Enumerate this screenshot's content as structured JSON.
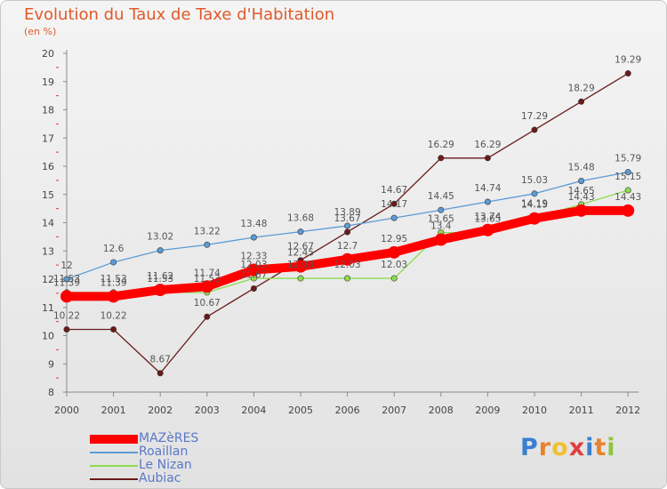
{
  "title": "Evolution du Taux de Taxe d'Habitation",
  "subtitle": "(en %)",
  "logo": "Proxiti",
  "chart_data": {
    "type": "line",
    "x": [
      "2000",
      "2001",
      "2002",
      "2003",
      "2004",
      "2005",
      "2006",
      "2007",
      "2008",
      "2009",
      "2010",
      "2011",
      "2012"
    ],
    "ylim": [
      8,
      20
    ],
    "yticks": [
      8,
      9,
      10,
      11,
      12,
      13,
      14,
      15,
      16,
      17,
      18,
      19,
      20
    ],
    "grid": false,
    "legend_position": "bottom-left",
    "series": [
      {
        "name": "MAZèRES",
        "color": "#ff0000",
        "values": [
          11.39,
          11.39,
          11.62,
          11.74,
          12.33,
          12.45,
          12.7,
          12.95,
          13.4,
          13.74,
          14.15,
          14.43,
          14.43
        ]
      },
      {
        "name": "Roaillan",
        "color": "#5b9bd5",
        "values": [
          12,
          12.6,
          13.02,
          13.22,
          13.48,
          13.68,
          13.89,
          14.17,
          14.45,
          14.74,
          15.03,
          15.48,
          15.79
        ]
      },
      {
        "name": "Le Nizan",
        "color": "#8cdc50",
        "values": [
          11.53,
          11.53,
          11.53,
          11.53,
          12.03,
          12.03,
          12.03,
          12.03,
          13.65,
          13.65,
          14.19,
          14.65,
          15.15
        ]
      },
      {
        "name": "Aubiac",
        "color": "#6b1a1a",
        "values": [
          10.22,
          10.22,
          8.67,
          10.67,
          11.67,
          12.67,
          13.67,
          14.67,
          16.29,
          16.29,
          17.29,
          18.29,
          19.29
        ]
      }
    ],
    "data_labels": [
      [
        "11.39",
        "11.39",
        "11.62",
        "11.74",
        "12.33",
        "12.45",
        "12.7",
        "12.95",
        "13.4",
        "13.74",
        "14.15",
        "14.43",
        "14.43"
      ],
      [
        "12",
        "12.6",
        "13.02",
        "13.22",
        "13.48",
        "13.68",
        "13.89",
        "14.17",
        "14.45",
        "14.74",
        "15.03",
        "15.48",
        "15.79"
      ],
      [
        "11.53",
        "11.53",
        "11.53",
        "11.53",
        "12.03",
        "12.03",
        "12.03",
        "12.03",
        "13.65",
        "13.65",
        "14.19",
        "14.65",
        "15.15"
      ],
      [
        "10.22",
        "10.22",
        "8.67",
        "10.67",
        "11.67",
        "12.67",
        "13.67",
        "14.67",
        "16.29",
        "16.29",
        "17.29",
        "18.29",
        "19.29"
      ]
    ]
  }
}
